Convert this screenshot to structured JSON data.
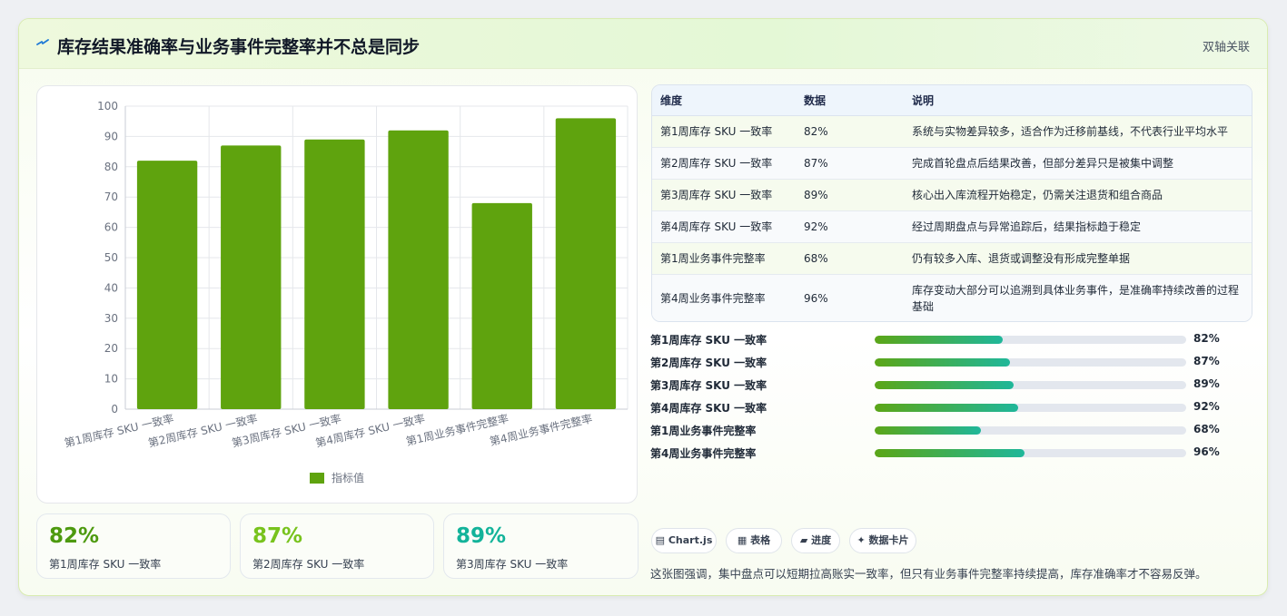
{
  "header": {
    "icon": "lightning-icon",
    "title": "库存结果准确率与业务事件完整率并不总是同步",
    "badge": "双轴关联"
  },
  "colors": {
    "bar": "#5fa30e",
    "accent_green": "#4d9a0f",
    "accent_lime": "#78c31d",
    "accent_teal": "#13b39a",
    "progress_start": "#5ba617",
    "progress_end": "#1fb79a"
  },
  "chart_data": {
    "type": "bar",
    "categories": [
      "第1周库存 SKU 一致率",
      "第2周库存 SKU 一致率",
      "第3周库存 SKU 一致率",
      "第4周库存 SKU 一致率",
      "第1周业务事件完整率",
      "第4周业务事件完整率"
    ],
    "series": [
      {
        "name": "指标值",
        "values": [
          82,
          87,
          89,
          92,
          68,
          96
        ]
      }
    ],
    "ylim": [
      0,
      100
    ],
    "yticks": [
      "0",
      "10",
      "20",
      "30",
      "40",
      "50",
      "60",
      "70",
      "80",
      "90",
      "100"
    ],
    "grid": true,
    "legend": "bottom"
  },
  "stats": [
    {
      "value": "82%",
      "label": "第1周库存 SKU 一致率"
    },
    {
      "value": "87%",
      "label": "第2周库存 SKU 一致率"
    },
    {
      "value": "89%",
      "label": "第3周库存 SKU 一致率"
    }
  ],
  "table": {
    "headers": [
      "维度",
      "数据",
      "说明"
    ],
    "rows": [
      [
        "第1周库存 SKU 一致率",
        "82%",
        "系统与实物差异较多，适合作为迁移前基线，不代表行业平均水平"
      ],
      [
        "第2周库存 SKU 一致率",
        "87%",
        "完成首轮盘点后结果改善，但部分差异只是被集中调整"
      ],
      [
        "第3周库存 SKU 一致率",
        "89%",
        "核心出入库流程开始稳定，仍需关注退货和组合商品"
      ],
      [
        "第4周库存 SKU 一致率",
        "92%",
        "经过周期盘点与异常追踪后，结果指标趋于稳定"
      ],
      [
        "第1周业务事件完整率",
        "68%",
        "仍有较多入库、退货或调整没有形成完整单据"
      ],
      [
        "第4周业务事件完整率",
        "96%",
        "库存变动大部分可以追溯到具体业务事件，是准确率持续改善的过程基础"
      ]
    ]
  },
  "progress": [
    {
      "label": "第1周库存 SKU 一致率",
      "value": "82%",
      "fraction": 0.82
    },
    {
      "label": "第2周库存 SKU 一致率",
      "value": "87%",
      "fraction": 0.87
    },
    {
      "label": "第3周库存 SKU 一致率",
      "value": "89%",
      "fraction": 0.89
    },
    {
      "label": "第4周库存 SKU 一致率",
      "value": "92%",
      "fraction": 0.92
    },
    {
      "label": "第1周业务事件完整率",
      "value": "68%",
      "fraction": 0.68
    },
    {
      "label": "第4周业务事件完整率",
      "value": "96%",
      "fraction": 0.96
    }
  ],
  "chips": [
    {
      "icon": "chart-icon",
      "label": "Chart.js"
    },
    {
      "icon": "table-icon",
      "label": "表格"
    },
    {
      "icon": "progress-icon",
      "label": "进度"
    },
    {
      "icon": "sparkle-icon",
      "label": "数据卡片"
    }
  ],
  "footnote": "这张图强调，集中盘点可以短期拉高账实一致率，但只有业务事件完整率持续提高，库存准确率才不容易反弹。"
}
